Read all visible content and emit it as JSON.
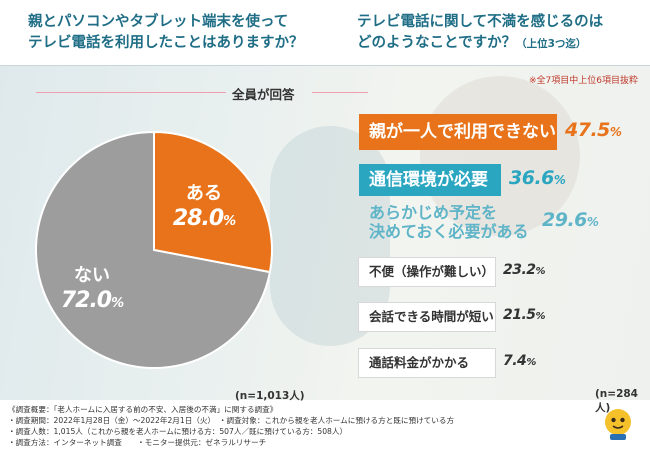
{
  "questions": {
    "left": {
      "line1": "親とパソコンやタブレット端末を使って",
      "line2": "テレビ電話を利用したことはありますか？"
    },
    "right": {
      "line1": "テレビ電話に関して不満を感じるのは",
      "line2": "どのようなことですか？",
      "suffix": "（上位3つ迄）"
    }
  },
  "sample_label": "全員が回答",
  "note": "※全7項目中上位6項目抜粋",
  "pie": {
    "n": "(n=1,013人)",
    "slices": [
      {
        "label": "ある",
        "value": 28.0,
        "value_text": "28.0",
        "color": "#e8731a"
      },
      {
        "label": "ない",
        "value": 72.0,
        "value_text": "72.0",
        "color": "#9d9d9d"
      }
    ],
    "percent_symbol": "%"
  },
  "chart_data": [
    {
      "type": "pie",
      "categories": [
        "ある",
        "ない"
      ],
      "values": [
        28.0,
        72.0
      ],
      "title": "親とパソコンやタブレット端末を使ってテレビ電話を利用したことはありますか？"
    },
    {
      "type": "bar",
      "categories": [
        "親が一人で利用できない",
        "通信環境が必要",
        "あらかじめ予定を決めておく必要がある",
        "不便（操作が難しい）",
        "会話できる時間が短い",
        "通話料金がかかる"
      ],
      "values": [
        47.5,
        36.6,
        29.6,
        23.2,
        21.5,
        7.4
      ],
      "title": "テレビ電話に関して不満を感じるのはどのようなことですか？（上位3つ迄）"
    }
  ],
  "bars": {
    "n": "(n=284人)",
    "percent_symbol": "%",
    "items": [
      {
        "lines": [
          "親が一人で利用できない"
        ],
        "value_text": "47.5",
        "bg": "#e8731a",
        "fg": "#ffffff",
        "pct_color": "#e8731a",
        "size": "big"
      },
      {
        "lines": [
          "通信環境が必要"
        ],
        "value_text": "36.6",
        "bg": "#2aa6c1",
        "fg": "#ffffff",
        "pct_color": "#2aa6c1",
        "size": "big"
      },
      {
        "lines": [
          "あらかじめ予定を",
          "決めておく必要がある"
        ],
        "value_text": "29.6",
        "bg": "transparent",
        "fg": "#5fb4c8",
        "pct_color": "#5fb4c8",
        "size": "big"
      },
      {
        "lines": [
          "不便（操作が難しい）"
        ],
        "value_text": "23.2",
        "bg": "#ffffff",
        "fg": "#333333",
        "pct_color": "#333333",
        "size": "small"
      },
      {
        "lines": [
          "会話できる時間が短い"
        ],
        "value_text": "21.5",
        "bg": "#ffffff",
        "fg": "#333333",
        "pct_color": "#333333",
        "size": "small"
      },
      {
        "lines": [
          "通話料金がかかる"
        ],
        "value_text": "7.4",
        "bg": "#ffffff",
        "fg": "#333333",
        "pct_color": "#333333",
        "size": "small"
      }
    ]
  },
  "footer": {
    "lines": [
      "《調査概要：「老人ホームに入居する前の不安、入居後の不満」に関する調査》",
      "・調査期間：2022年1月28日（金）～2022年2月1日（火）　・調査対象：これから親を老人ホームに預ける方と既に預けている方",
      "・調査人数：1,015人（これから親を老人ホームに預ける方：507人／既に預けている方：508人）",
      "・調査方法：インターネット調査　　・モニター提供元：ゼネラルリサーチ"
    ]
  }
}
